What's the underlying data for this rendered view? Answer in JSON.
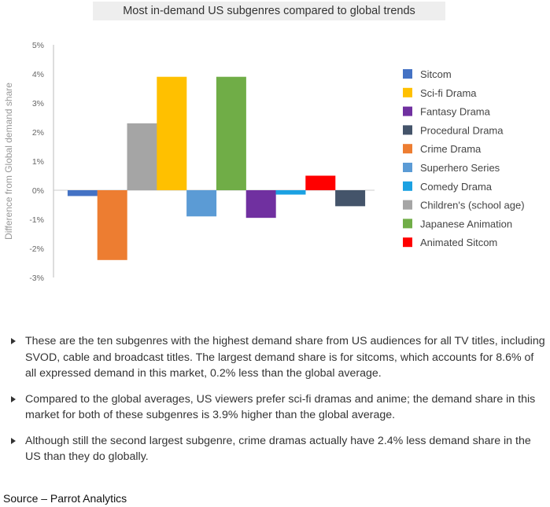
{
  "chart_data": {
    "type": "bar",
    "title": "Most in-demand US subgenres compared to global trends",
    "ylabel": "Difference from Global demand share",
    "xlabel": "",
    "ylim": [
      -3,
      5
    ],
    "yticks": [
      "5%",
      "4%",
      "3%",
      "2%",
      "1%",
      "0%",
      "-1%",
      "-2%",
      "-3%"
    ],
    "grid": false,
    "legend_position": "right",
    "categories": [
      "Sitcom",
      "Crime Drama",
      "Children's (school age)",
      "Sci-fi Drama",
      "Superhero Series",
      "Japanese Animation",
      "Fantasy Drama",
      "Comedy Drama",
      "Animated Sitcom",
      "Procedural Drama"
    ],
    "values": [
      -0.2,
      -2.4,
      2.3,
      3.9,
      -0.9,
      3.9,
      -0.95,
      -0.15,
      0.5,
      -0.55
    ],
    "colors": [
      "#4472C4",
      "#ED7D31",
      "#A5A5A5",
      "#FFC000",
      "#5B9BD5",
      "#70AD47",
      "#7030A0",
      "#1BA1E2",
      "#FF0000",
      "#44546A"
    ],
    "legend": [
      {
        "label": "Sitcom",
        "color": "#4472C4"
      },
      {
        "label": "Sci-fi Drama",
        "color": "#FFC000"
      },
      {
        "label": "Fantasy Drama",
        "color": "#7030A0"
      },
      {
        "label": "Procedural Drama",
        "color": "#44546A"
      },
      {
        "label": "Crime Drama",
        "color": "#ED7D31"
      },
      {
        "label": "Superhero Series",
        "color": "#5B9BD5"
      },
      {
        "label": "Comedy Drama",
        "color": "#1BA1E2"
      },
      {
        "label": "Children's (school age)",
        "color": "#A5A5A5"
      },
      {
        "label": "Japanese Animation",
        "color": "#70AD47"
      },
      {
        "label": "Animated Sitcom",
        "color": "#FF0000"
      }
    ]
  },
  "notes": [
    "These are the ten subgenres with the highest demand share from US audiences for all TV titles, including SVOD, cable and broadcast titles. The largest demand share is for sitcoms, which accounts for 8.6% of all expressed demand in this market, 0.2% less than the global average.",
    "Compared to the global averages, US viewers prefer sci-fi dramas and anime; the demand share in this market for both of these subgenres is 3.9% higher than the global average.",
    "Although still the second largest subgenre, crime dramas actually have 2.4% less demand share in the US than they do globally."
  ],
  "source": "Source – Parrot Analytics"
}
